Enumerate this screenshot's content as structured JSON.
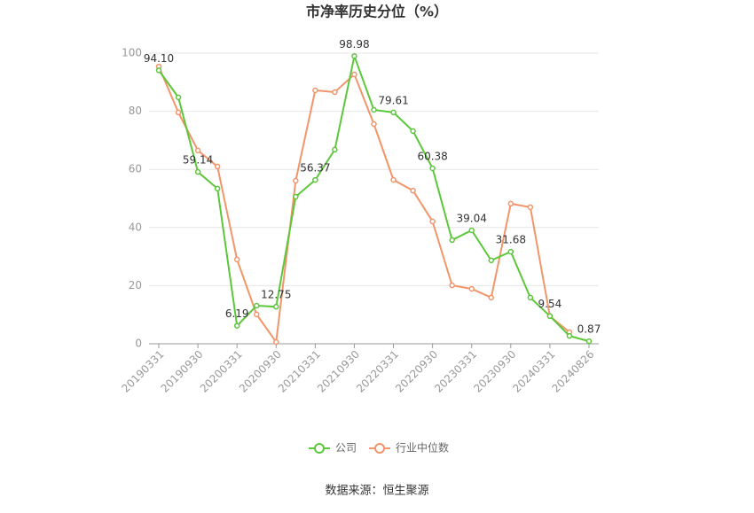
{
  "chart_data": {
    "type": "line",
    "title": "市净率历史分位（%）",
    "categories": [
      "20190331",
      null,
      "20190930",
      null,
      "20200331",
      null,
      "20200930",
      null,
      "20210331",
      null,
      "20210930",
      null,
      "20220331",
      null,
      "20220930",
      null,
      "20230331",
      null,
      "20230930",
      null,
      "20240331",
      null,
      "20240826"
    ],
    "series": [
      {
        "name": "公司",
        "color": "#5dc73b",
        "values": [
          94.1,
          84.8,
          59.14,
          53.4,
          6.19,
          13.1,
          12.75,
          50.6,
          56.37,
          66.8,
          98.98,
          80.5,
          79.61,
          73.2,
          60.38,
          35.7,
          39.04,
          28.7,
          31.68,
          15.9,
          9.54,
          2.7,
          0.87
        ],
        "value_labels": [
          "94.10",
          null,
          "59.14",
          null,
          "6.19",
          null,
          "12.75",
          null,
          "56.37",
          null,
          "98.98",
          null,
          "79.61",
          null,
          "60.38",
          null,
          "39.04",
          null,
          "31.68",
          null,
          "9.54",
          null,
          "0.87"
        ]
      },
      {
        "name": "行业中位数",
        "color": "#f2956a",
        "values": [
          95.4,
          79.6,
          66.5,
          61.0,
          29.0,
          10.1,
          0.6,
          56.1,
          87.2,
          86.6,
          92.7,
          75.6,
          56.4,
          52.7,
          42.1,
          20.1,
          18.9,
          15.9,
          48.2,
          47.0,
          9.5,
          4.0,
          null
        ]
      }
    ],
    "ylim": [
      0,
      100
    ],
    "yticks": [
      0,
      20,
      40,
      60,
      80,
      100
    ],
    "grid": true,
    "legend": "bottom",
    "source": "数据来源：恒生聚源"
  }
}
